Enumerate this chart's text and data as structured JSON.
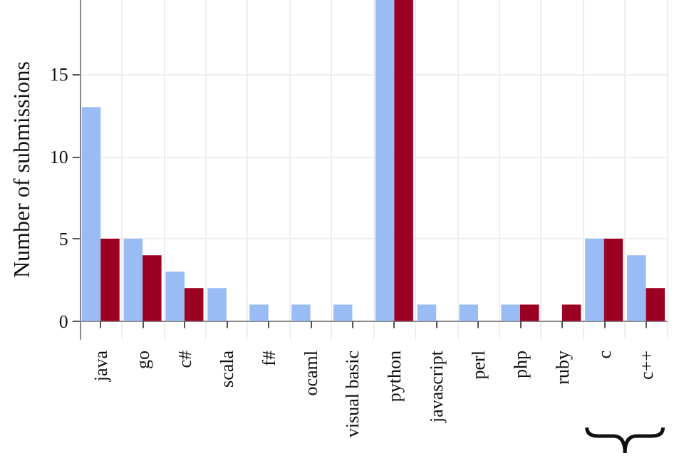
{
  "chart_data": {
    "type": "bar",
    "ylabel": "Number of submissions",
    "categories": [
      "java",
      "go",
      "c#",
      "scala",
      "f#",
      "ocaml",
      "visual basic",
      "python",
      "javascript",
      "perl",
      "php",
      "ruby",
      "c",
      "c++"
    ],
    "series": [
      {
        "color": "#9abcf5",
        "values": [
          13,
          5,
          3,
          2,
          1,
          1,
          1,
          19.5,
          1,
          1,
          1,
          0,
          5,
          4
        ]
      },
      {
        "color": "#9b0022",
        "values": [
          5,
          4,
          2,
          0,
          0,
          0,
          0,
          19.5,
          0,
          0,
          1,
          1,
          5,
          2
        ]
      }
    ],
    "ylim": [
      -1.1,
      19.5
    ],
    "yticks": [
      0,
      5,
      10,
      15
    ],
    "grid": true
  }
}
